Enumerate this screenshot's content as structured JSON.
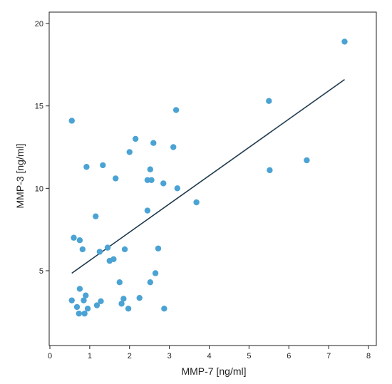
{
  "chart_data": {
    "type": "scatter",
    "title": "",
    "xlabel": "MMP-7 [ng/ml]",
    "ylabel": "MMP-3 [ng/ml]",
    "xlim": [
      0,
      8
    ],
    "ylim": [
      0,
      20
    ],
    "x_ticks": [
      0,
      1,
      2,
      3,
      4,
      5,
      6,
      7,
      8
    ],
    "y_ticks": [
      5,
      10,
      15,
      20
    ],
    "grid": false,
    "point_color": "#4ba3d4",
    "line_color": "#1f3a4d",
    "series": [
      {
        "points": [
          [
            0.55,
            14.1
          ],
          [
            0.55,
            3.2
          ],
          [
            0.6,
            7.0
          ],
          [
            0.68,
            2.8
          ],
          [
            0.73,
            2.4
          ],
          [
            0.75,
            3.9
          ],
          [
            0.75,
            6.85
          ],
          [
            0.82,
            6.3
          ],
          [
            0.85,
            3.2
          ],
          [
            0.87,
            2.4
          ],
          [
            0.9,
            3.5
          ],
          [
            0.92,
            11.3
          ],
          [
            0.95,
            2.7
          ],
          [
            1.15,
            8.3
          ],
          [
            1.18,
            2.9
          ],
          [
            1.25,
            6.15
          ],
          [
            1.28,
            3.15
          ],
          [
            1.33,
            11.4
          ],
          [
            1.45,
            6.4
          ],
          [
            1.5,
            5.6
          ],
          [
            1.6,
            5.7
          ],
          [
            1.65,
            10.6
          ],
          [
            1.75,
            4.3
          ],
          [
            1.8,
            3.0
          ],
          [
            1.85,
            3.3
          ],
          [
            1.88,
            6.3
          ],
          [
            1.97,
            2.7
          ],
          [
            2.0,
            12.2
          ],
          [
            2.15,
            13.0
          ],
          [
            2.25,
            3.35
          ],
          [
            2.45,
            10.5
          ],
          [
            2.45,
            8.65
          ],
          [
            2.52,
            4.3
          ],
          [
            2.52,
            11.15
          ],
          [
            2.55,
            10.5
          ],
          [
            2.6,
            12.75
          ],
          [
            2.65,
            4.85
          ],
          [
            2.72,
            6.35
          ],
          [
            2.85,
            10.3
          ],
          [
            2.87,
            2.7
          ],
          [
            3.1,
            12.5
          ],
          [
            3.17,
            14.75
          ],
          [
            3.2,
            10.0
          ],
          [
            3.68,
            9.15
          ],
          [
            5.5,
            15.3
          ],
          [
            5.52,
            11.1
          ],
          [
            6.45,
            11.7
          ],
          [
            7.4,
            18.9
          ]
        ]
      }
    ],
    "trendline": [
      [
        0.55,
        4.85
      ],
      [
        7.4,
        16.6
      ]
    ]
  }
}
